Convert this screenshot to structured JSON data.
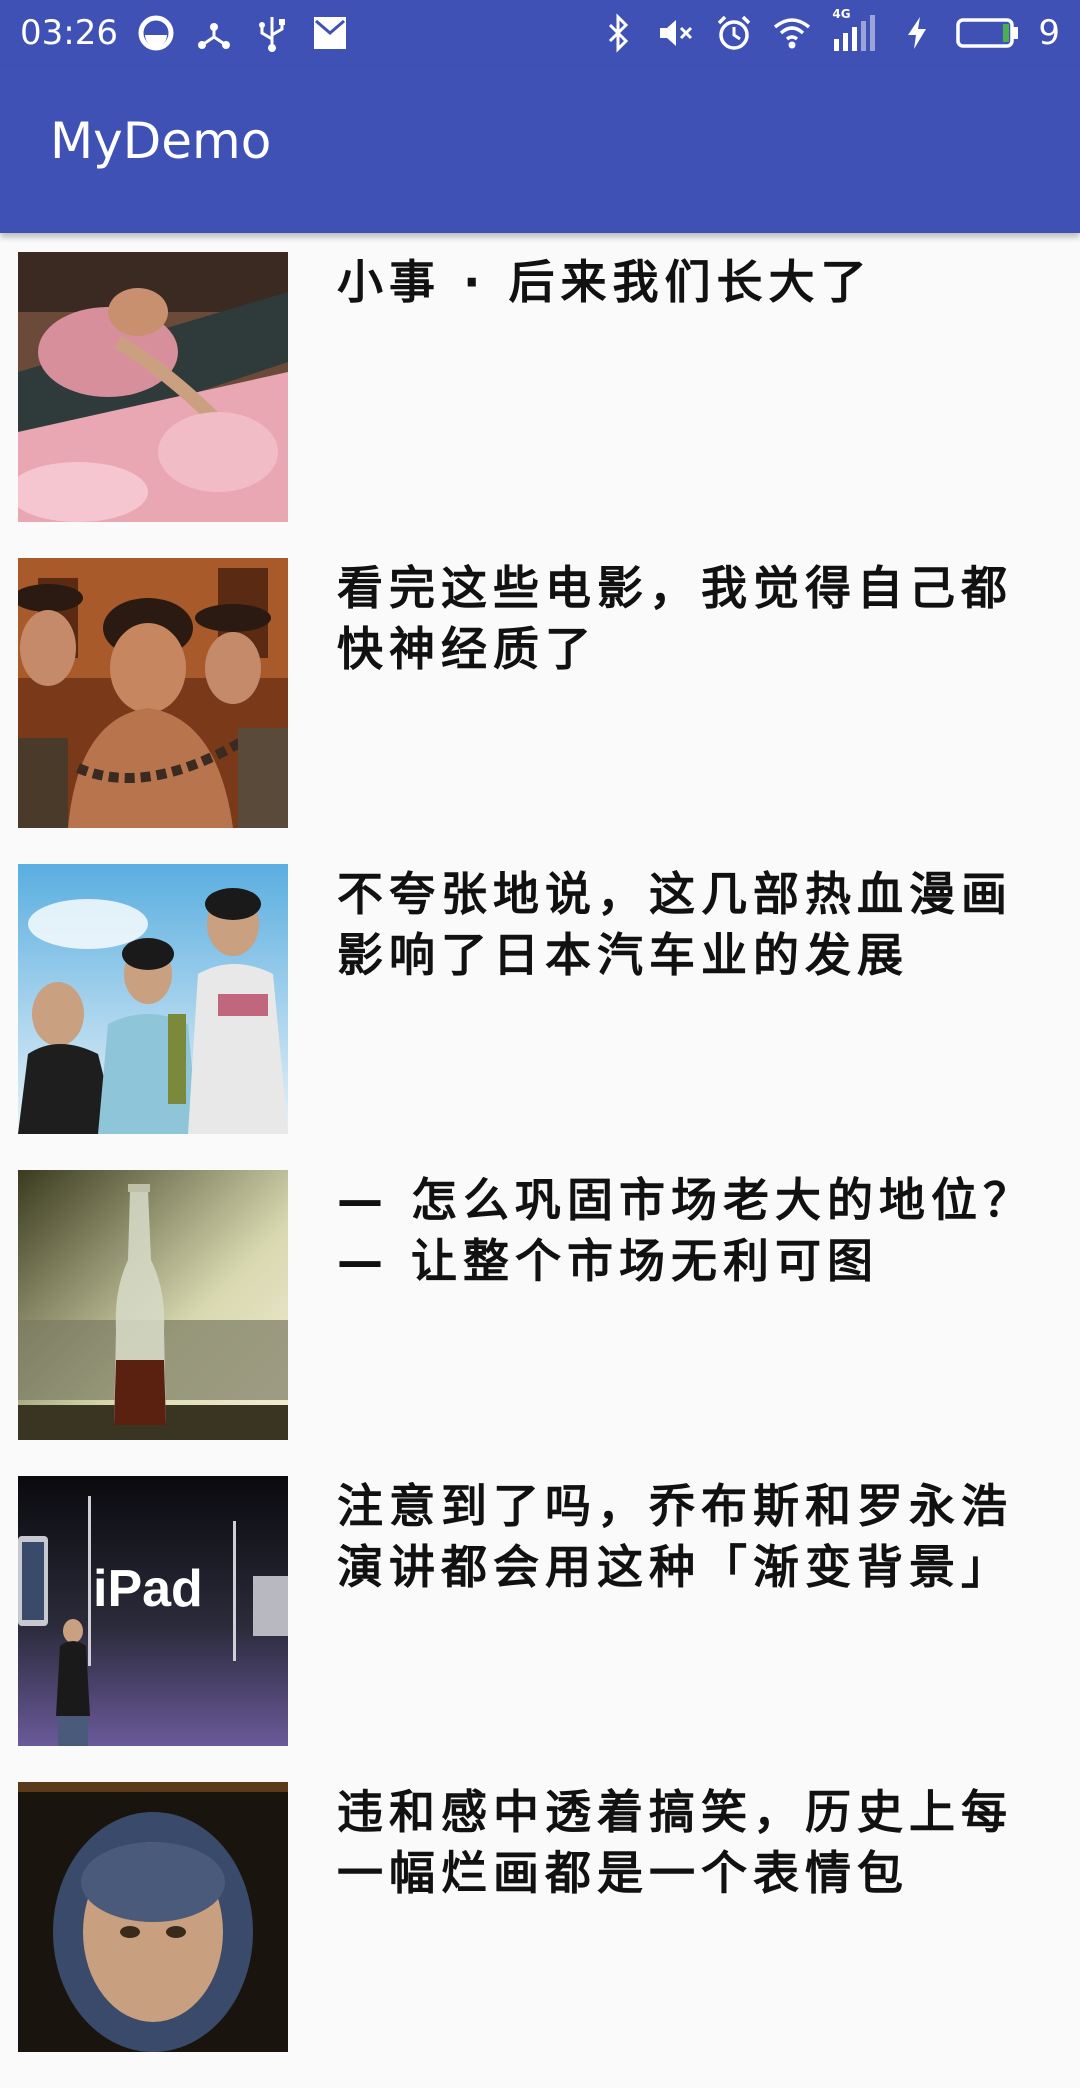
{
  "status_bar": {
    "time": "03:26",
    "battery_level": "9",
    "network_type": "4G",
    "icons_left": [
      "dots-circle-icon",
      "usb-tether-icon",
      "usb-icon",
      "mail-icon"
    ],
    "icons_right": [
      "bluetooth-icon",
      "mute-icon",
      "alarm-icon",
      "wifi-icon",
      "signal-icon",
      "charging-icon",
      "battery-icon"
    ]
  },
  "app_bar": {
    "title": "MyDemo",
    "color": "#3f51b5"
  },
  "articles": [
    {
      "title": "小事 · 后来我们长大了",
      "image_icon": "photo-sleeping-child"
    },
    {
      "title": "看完这些电影，我觉得自己都快神经质了",
      "image_icon": "photo-movie-prisoner"
    },
    {
      "title": "不夸张地说，这几部热血漫画影响了日本汽车业的发展",
      "image_icon": "photo-three-young-men"
    },
    {
      "title": "— 怎么巩固市场老大的地位？\n— 让整个市场无利可图",
      "image_icon": "photo-cola-bottle"
    },
    {
      "title": "注意到了吗，乔布斯和罗永浩演讲都会用这种「渐变背景」",
      "image_icon": "photo-ipad-keynote"
    },
    {
      "title": "违和感中透着搞笑，历史上每一幅烂画都是一个表情包",
      "image_icon": "photo-old-painting"
    }
  ]
}
